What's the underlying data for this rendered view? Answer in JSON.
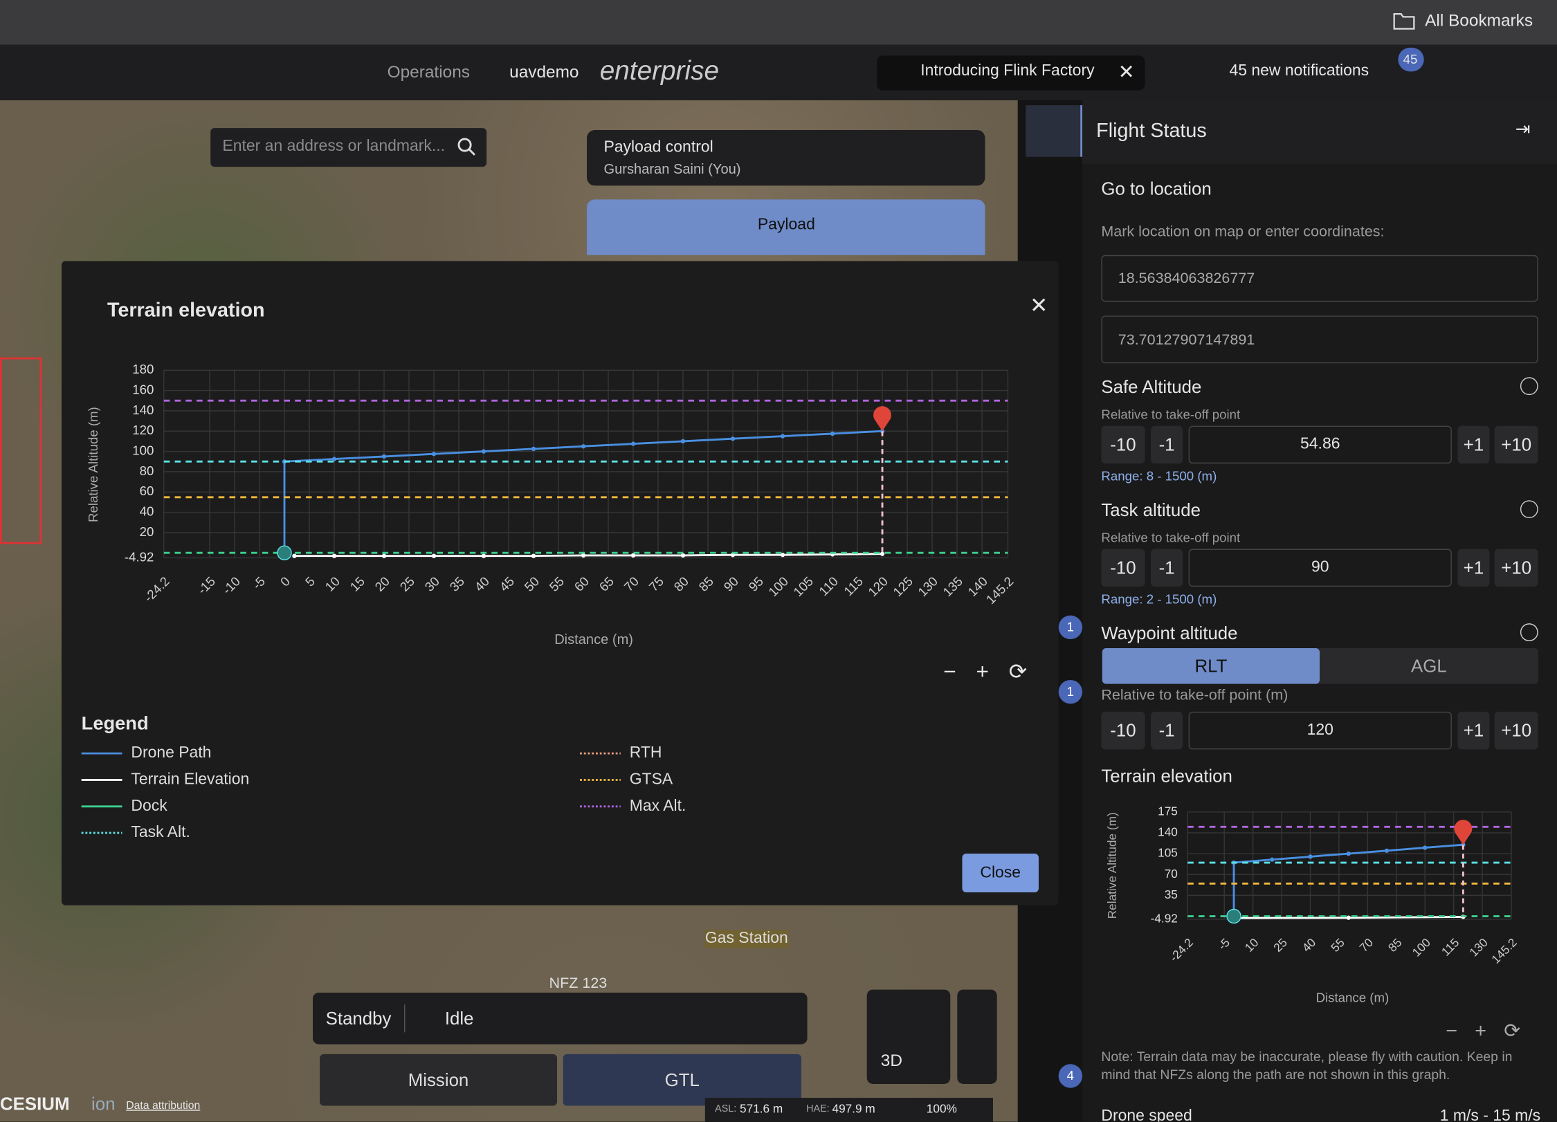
{
  "browser": {
    "bookmarks": "All Bookmarks"
  },
  "header": {
    "operations": "Operations",
    "org": "uavdemo",
    "brand": "enterprise",
    "promo": "Introducing Flink Factory",
    "notifications": "45 new notifications",
    "badge": "45"
  },
  "map": {
    "search_placeholder": "Enter an address or landmark...",
    "places": [
      "Gas Station",
      "NFZ 123"
    ],
    "logo": "CESIUM",
    "logo_suffix": "ion",
    "attribution": "Data attribution",
    "state": "Standby",
    "mode": "Idle",
    "buttons": [
      "Mission",
      "GTL"
    ],
    "view": "3D",
    "asl_label": "ASL:",
    "asl": "571.6 m",
    "hae_label": "HAE:",
    "hae": "497.9 m",
    "battery": "100%"
  },
  "payload": {
    "title": "Payload control",
    "user": "Gursharan Saini (You)",
    "tab": "Payload"
  },
  "sidebar": {
    "badges": [
      "1",
      "1",
      "4"
    ]
  },
  "modal": {
    "title": "Terrain elevation",
    "legend_title": "Legend",
    "close": "Close",
    "chart": {
      "type": "line",
      "x_label": "Distance  (m)",
      "y_label": "Relative Altitude  (m)",
      "grid": true,
      "xlim": [
        -24.2,
        145.2
      ],
      "xticks": [
        -24.2,
        -15,
        -10,
        -5,
        0,
        5,
        10,
        15,
        20,
        25,
        30,
        35,
        40,
        45,
        50,
        55,
        60,
        65,
        70,
        75,
        80,
        85,
        90,
        95,
        100,
        105,
        110,
        115,
        120,
        125,
        130,
        135,
        140,
        145.2
      ],
      "ylim": [
        -4.92,
        180
      ],
      "yticks": [
        -4.92,
        20,
        40,
        60,
        80,
        100,
        120,
        140,
        160,
        180
      ],
      "series": [
        {
          "name": "Drone Path",
          "color": "#4a90e2",
          "x": [
            0,
            0,
            10,
            20,
            30,
            40,
            50,
            60,
            70,
            80,
            90,
            100,
            110,
            120
          ],
          "values": [
            0,
            90,
            92.5,
            95,
            97.5,
            100,
            102.5,
            105,
            107.5,
            110,
            112.5,
            115,
            117.5,
            120
          ]
        },
        {
          "name": "Terrain Elevation",
          "color": "#ffffff",
          "x": [
            2,
            10,
            20,
            30,
            40,
            50,
            60,
            70,
            80,
            90,
            100,
            110,
            120
          ],
          "values": [
            -3,
            -3,
            -3,
            -3,
            -3,
            -3,
            -2.5,
            -2.5,
            -2.5,
            -2,
            -2,
            -1.5,
            -1
          ]
        },
        {
          "name": "Dock",
          "color": "#3ecf8e",
          "level": 0
        },
        {
          "name": "Task Alt.",
          "color": "#5ce1e6",
          "dash": true,
          "level": 90
        },
        {
          "name": "RTH",
          "color": "#f0a080",
          "dash": true
        },
        {
          "name": "GTSA",
          "color": "#f5b83d",
          "dash": true,
          "level": 54.86
        },
        {
          "name": "Max Alt.",
          "color": "#b065e0",
          "dash": true,
          "level": 150
        }
      ]
    }
  },
  "panel": {
    "title": "Flight Status",
    "section": "Go to location",
    "hint": "Mark location on map or enter coordinates:",
    "lat": "18.56384063826777",
    "lon": "73.70127907147891",
    "steps": [
      "-10",
      "-1",
      "+1",
      "+10"
    ],
    "safe": {
      "title": "Safe Altitude",
      "subtitle": "Relative to take-off point",
      "value": 54.86,
      "range": "Range: 8 - 1500 (m)"
    },
    "task": {
      "title": "Task altitude",
      "subtitle": "Relative to take-off point",
      "value": 90,
      "range": "Range: 2 - 1500 (m)"
    },
    "waypoint": {
      "title": "Waypoint altitude",
      "modes": [
        "RLT",
        "AGL"
      ],
      "subtitle": "Relative to take-off point (m)",
      "value": 120
    },
    "terrain_title": "Terrain elevation",
    "chart": {
      "type": "line",
      "x_label": "Distance  (m)",
      "y_label": "Relative Altitude  (m)",
      "grid": true,
      "xlim": [
        -24.2,
        145.2
      ],
      "xticks": [
        -24.2,
        -5,
        10,
        25,
        40,
        55,
        70,
        85,
        100,
        115,
        130,
        145.2
      ],
      "ylim": [
        -4.92,
        175
      ],
      "yticks": [
        -4.92,
        35,
        70,
        105,
        140,
        175
      ],
      "series": [
        {
          "color": "#4a90e2",
          "x": [
            0,
            0,
            20,
            40,
            60,
            80,
            100,
            120
          ],
          "values": [
            0,
            90,
            95,
            100,
            105,
            110,
            115,
            120
          ]
        },
        {
          "color": "#ffffff",
          "x": [
            2,
            60,
            120
          ],
          "values": [
            -3,
            -2.5,
            -1
          ]
        },
        {
          "color": "#3ecf8e",
          "level": 0
        },
        {
          "color": "#5ce1e6",
          "level": 90
        },
        {
          "color": "#f5b83d",
          "level": 54.86
        },
        {
          "color": "#b065e0",
          "level": 150
        }
      ]
    },
    "note": "Note: Terrain data may be inaccurate, please fly with caution. Keep in mind that NFZs along the path are not shown in this graph.",
    "speed_label": "Drone speed",
    "speed": "1 m/s - 15 m/s"
  }
}
